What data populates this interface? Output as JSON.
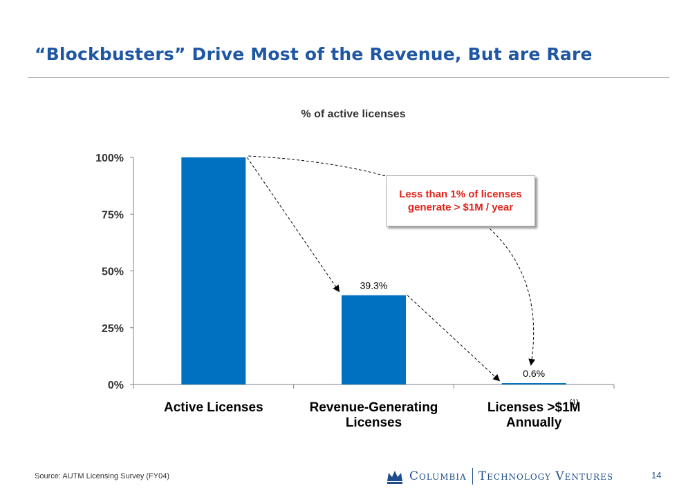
{
  "slide": {
    "title": "“Blockbusters” Drive Most of the Revenue, But are Rare",
    "source": "Source: AUTM Licensing Survey (FY04)",
    "page_number": "14"
  },
  "logo": {
    "word1": "Columbia",
    "word2": "Technology Ventures"
  },
  "callout": {
    "text": "Less than 1% of licenses generate > $1M / year"
  },
  "colors": {
    "title": "#1f57a4",
    "bar": "#0070c0",
    "callout_text": "#e2231a",
    "logo": "#1f4e8c"
  },
  "chart_data": {
    "type": "bar",
    "title": "% of active licenses",
    "categories": [
      [
        "Active Licenses"
      ],
      [
        "Revenue-Generating",
        "Licenses"
      ],
      [
        "Licenses >$1M",
        "Annually"
      ]
    ],
    "category_footnote": [
      "",
      "",
      "(1)"
    ],
    "values": [
      100,
      39.3,
      0.6
    ],
    "data_labels": [
      "",
      "39.3%",
      "0.6%"
    ],
    "y_ticks": [
      0,
      25,
      50,
      75,
      100
    ],
    "y_tick_labels": [
      "0%",
      "25%",
      "50%",
      "75%",
      "100%"
    ],
    "ylim": [
      0,
      100
    ],
    "grid": false,
    "legend": "none"
  }
}
